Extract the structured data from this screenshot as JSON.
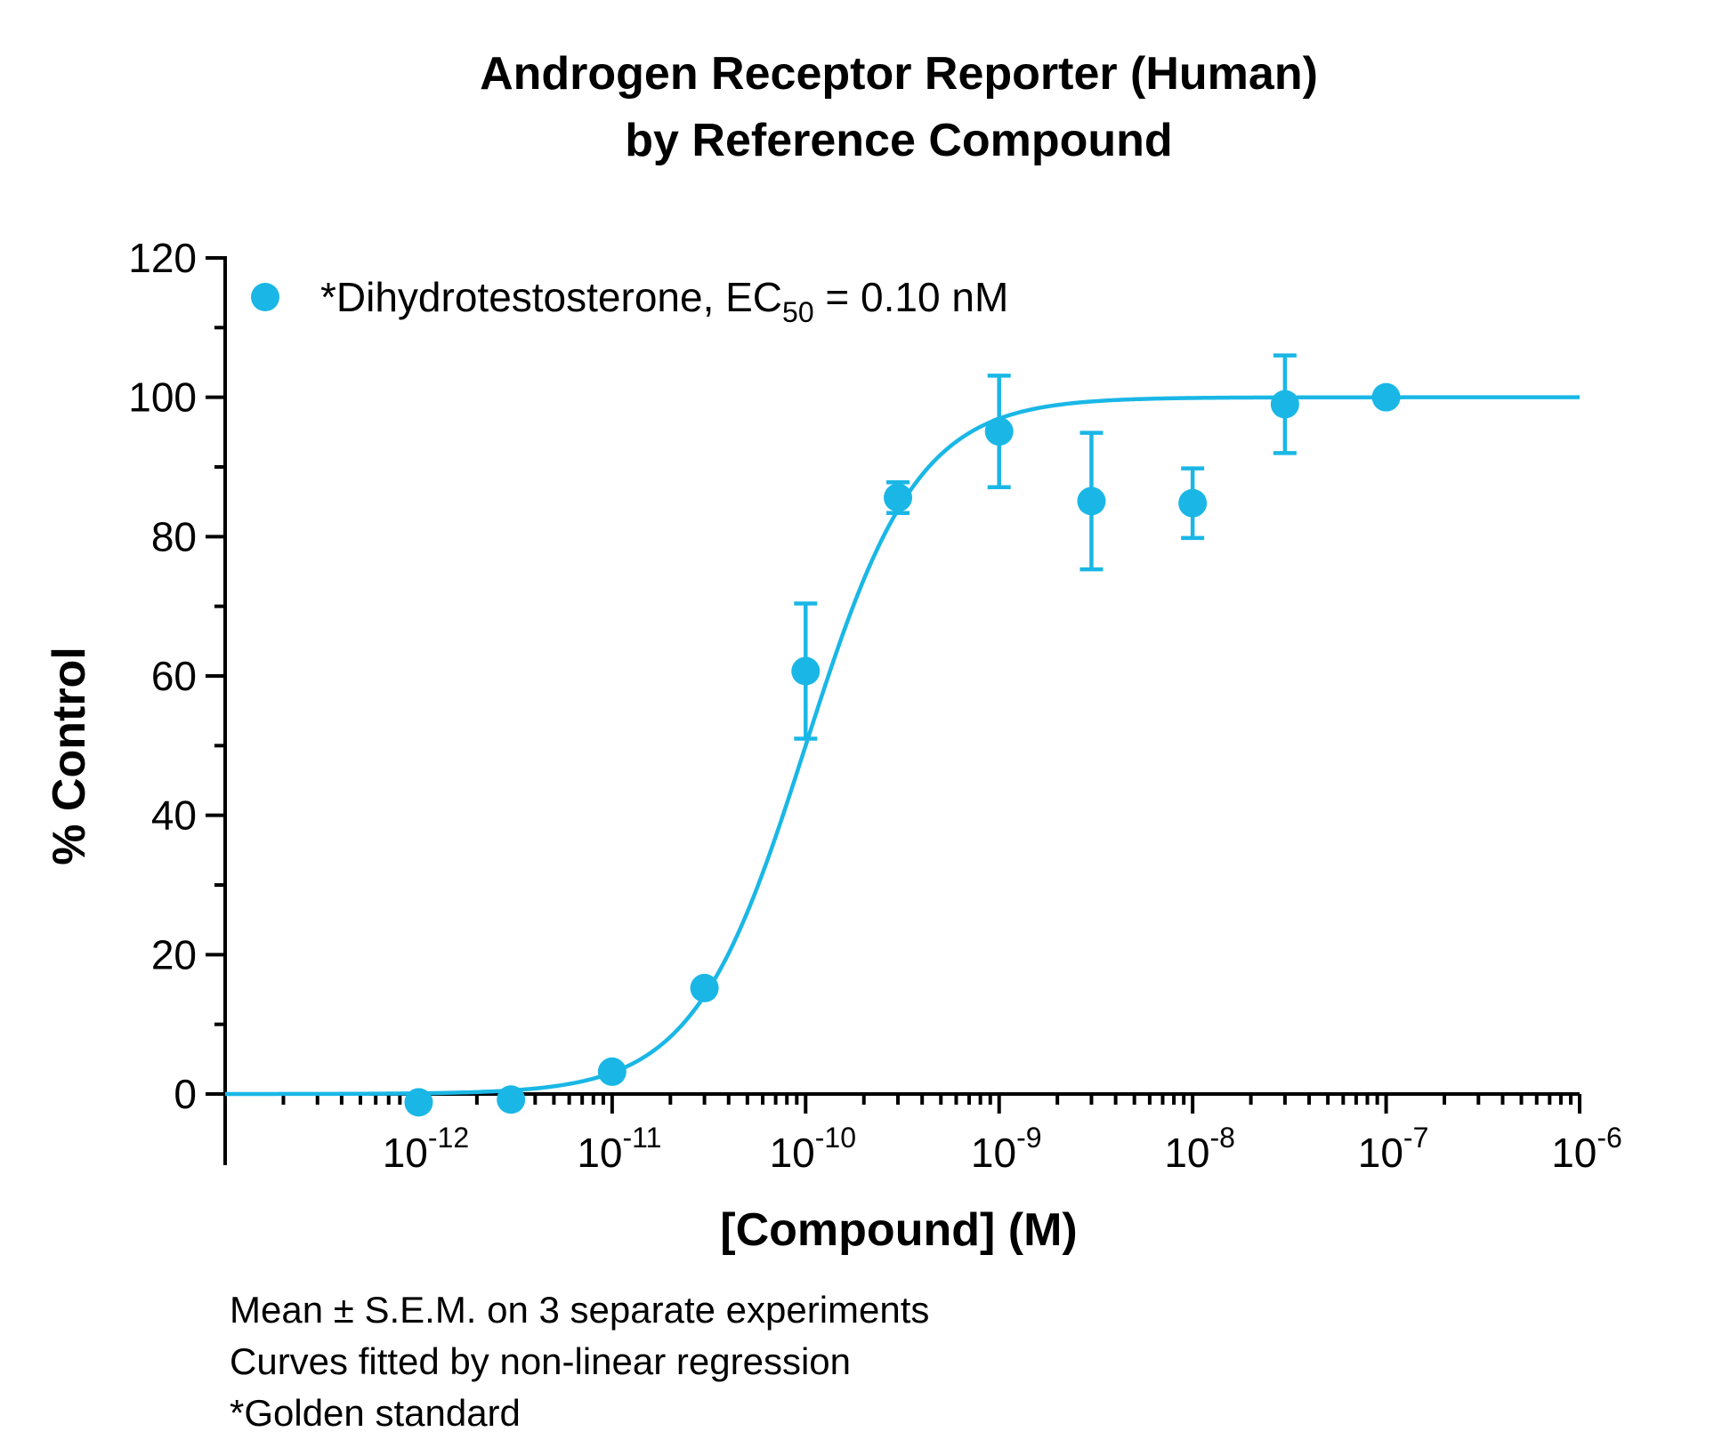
{
  "chart_data": {
    "type": "scatter",
    "title_lines": [
      "Androgen Receptor Reporter (Human)",
      "by Reference Compound"
    ],
    "xlabel": "[Compound] (M)",
    "ylabel": "% Control",
    "x_scale": "log",
    "xlim": [
      1e-13,
      1e-06
    ],
    "ylim": [
      0,
      120
    ],
    "x_tick_labels": [
      {
        "value": 1e-12,
        "base": "10",
        "exp": "-12"
      },
      {
        "value": 1e-11,
        "base": "10",
        "exp": "-11"
      },
      {
        "value": 1e-10,
        "base": "10",
        "exp": "-10"
      },
      {
        "value": 1e-09,
        "base": "10",
        "exp": "-9"
      },
      {
        "value": 1e-08,
        "base": "10",
        "exp": "-8"
      },
      {
        "value": 1e-07,
        "base": "10",
        "exp": "-7"
      },
      {
        "value": 1e-06,
        "base": "10",
        "exp": "-6"
      }
    ],
    "y_ticks": [
      0,
      20,
      40,
      60,
      80,
      100,
      120
    ],
    "y_tick_labels": [
      "0",
      "20",
      "40",
      "60",
      "80",
      "100",
      "120"
    ],
    "legend": {
      "placement": "top-left",
      "text_main": "*Dihydrotestosterone, EC",
      "text_sub": "50",
      "text_end": " = 0.10 nM"
    },
    "series": [
      {
        "color": "#1ab7e6",
        "points": [
          {
            "x": 1e-12,
            "y": -1.2,
            "err": 0
          },
          {
            "x": 3e-12,
            "y": -0.8,
            "err": 0
          },
          {
            "x": 1e-11,
            "y": 3.2,
            "err": 0
          },
          {
            "x": 3e-11,
            "y": 15.2,
            "err": 0
          },
          {
            "x": 1e-10,
            "y": 60.7,
            "err": 9.7
          },
          {
            "x": 3e-10,
            "y": 85.6,
            "err": 2.2
          },
          {
            "x": 1e-09,
            "y": 95.1,
            "err": 8.0
          },
          {
            "x": 3e-09,
            "y": 85.1,
            "err": 9.8
          },
          {
            "x": 1e-08,
            "y": 84.8,
            "err": 5.0
          },
          {
            "x": 3e-08,
            "y": 99.0,
            "err": 7.0
          },
          {
            "x": 1e-07,
            "y": 100.0,
            "err": 0
          }
        ],
        "fit": {
          "bottom": 0,
          "top": 100,
          "ec50": 1e-10,
          "hill": 1.5
        }
      }
    ],
    "footnotes": [
      "Mean ± S.E.M. on 3 separate experiments",
      "Curves fitted by non-linear regression",
      "*Golden standard"
    ]
  }
}
